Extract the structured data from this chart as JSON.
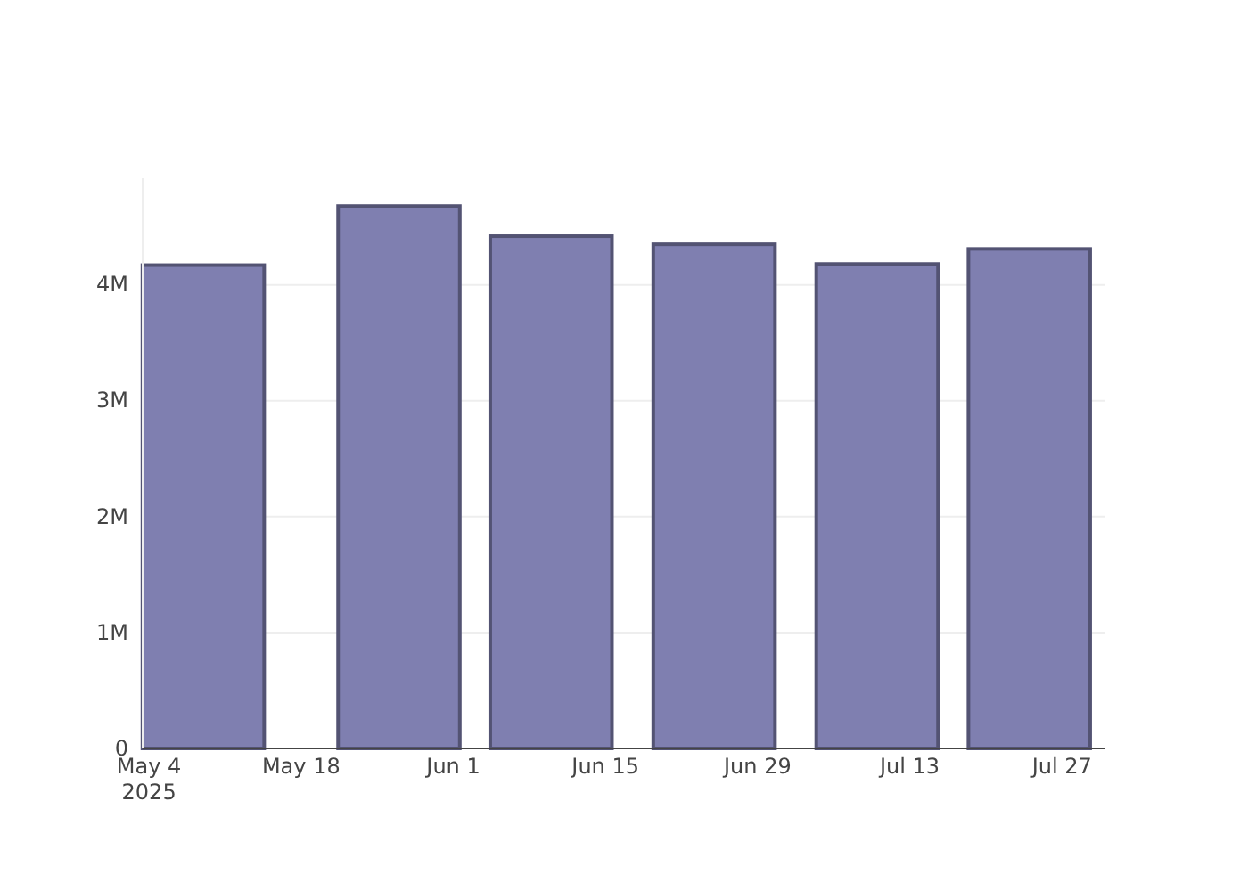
{
  "chart_data": {
    "type": "bar",
    "x": [
      "2025-05-09",
      "2025-05-27",
      "2025-06-10",
      "2025-06-25",
      "2025-07-10",
      "2025-07-24"
    ],
    "series": [
      {
        "color": "#7f7fb0",
        "values": [
          4170000,
          4680000,
          4420000,
          4350000,
          4180000,
          4310000
        ]
      }
    ],
    "xlim": [
      "2025-05-03T10:00",
      "2025-07-31"
    ],
    "xticks": [
      {
        "value": "2025-05-04",
        "label": "May 4\n2025"
      },
      {
        "value": "2025-05-18",
        "label": "May 18"
      },
      {
        "value": "2025-06-01",
        "label": "Jun 1"
      },
      {
        "value": "2025-06-15",
        "label": "Jun 15"
      },
      {
        "value": "2025-06-29",
        "label": "Jun 29"
      },
      {
        "value": "2025-07-13",
        "label": "Jul 13"
      },
      {
        "value": "2025-07-27",
        "label": "Jul 27"
      }
    ],
    "yticks": [
      {
        "value": 0,
        "label": "0"
      },
      {
        "value": 1000000,
        "label": "1M"
      },
      {
        "value": 2000000,
        "label": "2M"
      },
      {
        "value": 3000000,
        "label": "3M"
      },
      {
        "value": 4000000,
        "label": "4M"
      }
    ],
    "ylim": [
      0,
      4920000
    ],
    "grid": "y"
  }
}
